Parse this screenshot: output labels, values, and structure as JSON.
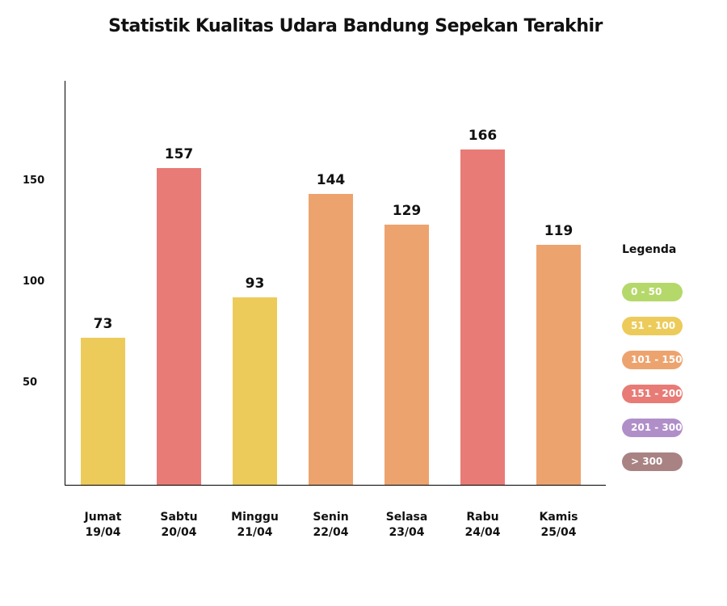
{
  "chart_data": {
    "type": "bar",
    "title": "Statistik Kualitas Udara Bandung Sepekan Terakhir",
    "categories": [
      {
        "day": "Jumat",
        "date": "19/04"
      },
      {
        "day": "Sabtu",
        "date": "20/04"
      },
      {
        "day": "Minggu",
        "date": "21/04"
      },
      {
        "day": "Senin",
        "date": "22/04"
      },
      {
        "day": "Selasa",
        "date": "23/04"
      },
      {
        "day": "Rabu",
        "date": "24/04"
      },
      {
        "day": "Kamis",
        "date": "25/04"
      }
    ],
    "values": [
      73,
      157,
      93,
      144,
      129,
      166,
      119
    ],
    "yticks": [
      50,
      100,
      150
    ],
    "ylim": [
      0,
      200
    ],
    "grid": false,
    "legend": {
      "title": "Legenda",
      "placement": "right",
      "items": [
        {
          "label": "0 - 50",
          "min": 0,
          "max": 50,
          "color": "#b5d86a"
        },
        {
          "label": "51 - 100",
          "min": 51,
          "max": 100,
          "color": "#eccb5a"
        },
        {
          "label": "101 - 150",
          "min": 101,
          "max": 150,
          "color": "#eda36e"
        },
        {
          "label": "151 - 200",
          "min": 151,
          "max": 200,
          "color": "#e87b76"
        },
        {
          "label": "201 - 300",
          "min": 201,
          "max": 300,
          "color": "#b08fc9"
        },
        {
          "label": "> 300",
          "min": 301,
          "max": 99999,
          "color": "#a98284"
        }
      ]
    }
  }
}
